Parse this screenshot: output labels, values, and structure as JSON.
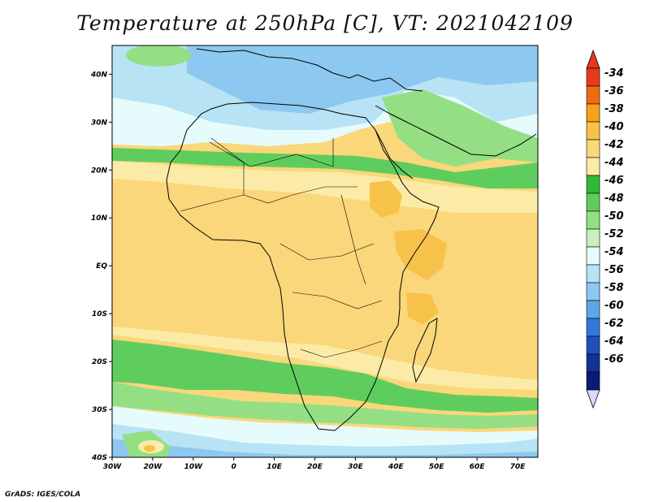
{
  "title": "Temperature at 250hPa [C], VT: 2021042109",
  "credit": "GrADS: IGES/COLA",
  "axes": {
    "lon_labels": [
      "30W",
      "20W",
      "10W",
      "0",
      "10E",
      "20E",
      "30E",
      "40E",
      "50E",
      "60E",
      "70E"
    ],
    "lat_labels": [
      "40N",
      "30N",
      "20N",
      "10N",
      "EQ",
      "10S",
      "20S",
      "30S",
      "40S"
    ],
    "lon_range": [
      -30,
      75
    ],
    "lat_range": [
      -40,
      46
    ]
  },
  "colorbar": {
    "levels": [
      "-34",
      "-36",
      "-38",
      "-40",
      "-42",
      "-44",
      "-46",
      "-48",
      "-50",
      "-52",
      "-54",
      "-56",
      "-58",
      "-60",
      "-62",
      "-64",
      "-66"
    ],
    "colors": [
      "#e8391c",
      "#f26a0e",
      "#f7a11a",
      "#f7c24a",
      "#fad77a",
      "#fbeba6",
      "#32b838",
      "#5fcd5d",
      "#94df84",
      "#c7f0bb",
      "#e6fcfc",
      "#b8e3f5",
      "#8cc8ef",
      "#5aa6e6",
      "#3377d9",
      "#1f4fbd",
      "#123395",
      "#0c1a73"
    ],
    "top_color": "#e8391c",
    "bottom_color": "#dcd7ff"
  },
  "map": {
    "zone_colors": {
      "north_blue": "#8cc8ef",
      "north_mid": "#b8e3f5",
      "north_pale": "#e6fcfc",
      "green_band": "#5fcd5d",
      "green_pale": "#94df84",
      "tropics_main": "#fad77a",
      "tropics_pale": "#fbeba6",
      "tropics_orange": "#f7c24a",
      "south_green": "#5fcd5d",
      "south_pale": "#e6fcfc",
      "south_blue": "#b8e3f5",
      "south_deep": "#8cc8ef"
    },
    "coastline_color": "#000000"
  }
}
